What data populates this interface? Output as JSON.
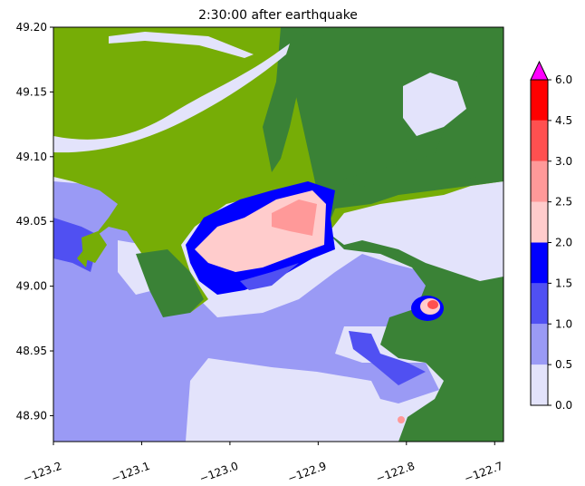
{
  "title": "2:30:00 after earthquake",
  "chart_data": {
    "type": "heatmap",
    "title": "2:30:00 after earthquake",
    "x_ticks": [
      "−123.2",
      "−123.1",
      "−123.0",
      "−122.9",
      "−122.8",
      "−122.7"
    ],
    "x_tick_values": [
      -123.2,
      -123.1,
      -123.0,
      -122.9,
      -122.8,
      -122.7
    ],
    "y_ticks": [
      "48.90",
      "48.95",
      "49.00",
      "49.05",
      "49.10",
      "49.15",
      "49.20"
    ],
    "y_tick_values": [
      48.9,
      48.95,
      49.0,
      49.05,
      49.1,
      49.15,
      49.2
    ],
    "xlim": [
      -123.2,
      -122.69
    ],
    "ylim": [
      48.88,
      49.2
    ],
    "colorbar": {
      "levels": [
        "0.0",
        "0.5",
        "1.0",
        "1.5",
        "2.0",
        "2.5",
        "3.0",
        "4.5",
        "6.0"
      ],
      "colors": [
        "#e3e3fb",
        "#9a9af5",
        "#5050f2",
        "#0000ff",
        "#ffcccc",
        "#ff9999",
        "#ff5050",
        "#ff0000"
      ],
      "extend_color": "#ff00ff",
      "extend": "max"
    },
    "land_colors": {
      "lowland": "#76ad06",
      "upland": "#3a8236"
    }
  }
}
